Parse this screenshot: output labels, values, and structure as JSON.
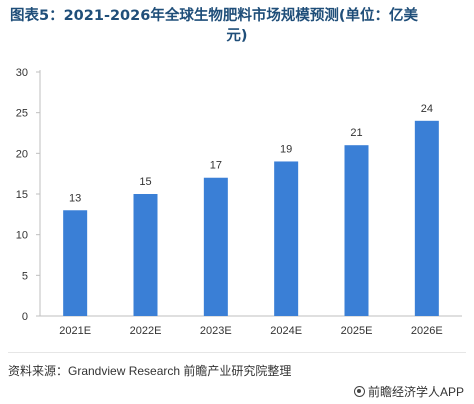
{
  "title_line1": "图表5：2021-2026年全球生物肥料市场规模预测(单位：亿美",
  "title_line2": "元)",
  "source": "资料来源：Grandview Research 前瞻产业研究院整理",
  "brand": "前瞻经济学人APP",
  "colors": {
    "bar": "#3a7fd6",
    "axis": "#bfbfbf",
    "text": "#333333"
  },
  "chart_data": {
    "type": "bar",
    "categories": [
      "2021E",
      "2022E",
      "2023E",
      "2024E",
      "2025E",
      "2026E"
    ],
    "values": [
      13,
      15,
      17,
      19,
      21,
      24
    ],
    "yticks": [
      0,
      5,
      10,
      15,
      20,
      25,
      30
    ],
    "ylim": [
      0,
      30
    ],
    "grid": false,
    "data_labels": true
  }
}
